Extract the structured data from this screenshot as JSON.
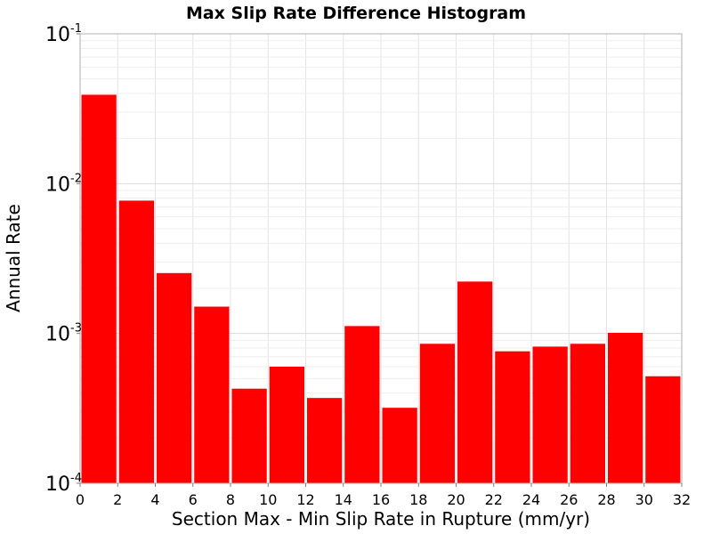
{
  "chart_data": {
    "type": "bar",
    "title": "Max Slip Rate Difference Histogram",
    "xlabel": "Section Max - Min Slip Rate in Rupture (mm/yr)",
    "ylabel": "Annual Rate",
    "xlim": [
      0,
      32
    ],
    "ylim": [
      0.0001,
      0.1
    ],
    "y_scale": "log",
    "bin_width": 2,
    "x_ticks": [
      0,
      2,
      4,
      6,
      8,
      10,
      12,
      14,
      16,
      18,
      20,
      22,
      24,
      26,
      28,
      30,
      32
    ],
    "y_ticks": [
      {
        "value": 0.1,
        "base": "10",
        "exp": "-1"
      },
      {
        "value": 0.01,
        "base": "10",
        "exp": "-2"
      },
      {
        "value": 0.001,
        "base": "10",
        "exp": "-3"
      },
      {
        "value": 0.0001,
        "base": "10",
        "exp": "-4"
      }
    ],
    "bars": [
      {
        "x": 1,
        "value": 0.0392
      },
      {
        "x": 3,
        "value": 0.0077
      },
      {
        "x": 5,
        "value": 0.00253
      },
      {
        "x": 7,
        "value": 0.00151
      },
      {
        "x": 9,
        "value": 0.000428
      },
      {
        "x": 11,
        "value": 0.0006
      },
      {
        "x": 13,
        "value": 0.000371
      },
      {
        "x": 15,
        "value": 0.00112
      },
      {
        "x": 17,
        "value": 0.000319
      },
      {
        "x": 19,
        "value": 0.000853
      },
      {
        "x": 21,
        "value": 0.00222
      },
      {
        "x": 23,
        "value": 0.00076
      },
      {
        "x": 25,
        "value": 0.000817
      },
      {
        "x": 27,
        "value": 0.000853
      },
      {
        "x": 29,
        "value": 0.00101
      },
      {
        "x": 31,
        "value": 0.000518
      }
    ],
    "bar_color": "#ff0000",
    "grid": true
  }
}
